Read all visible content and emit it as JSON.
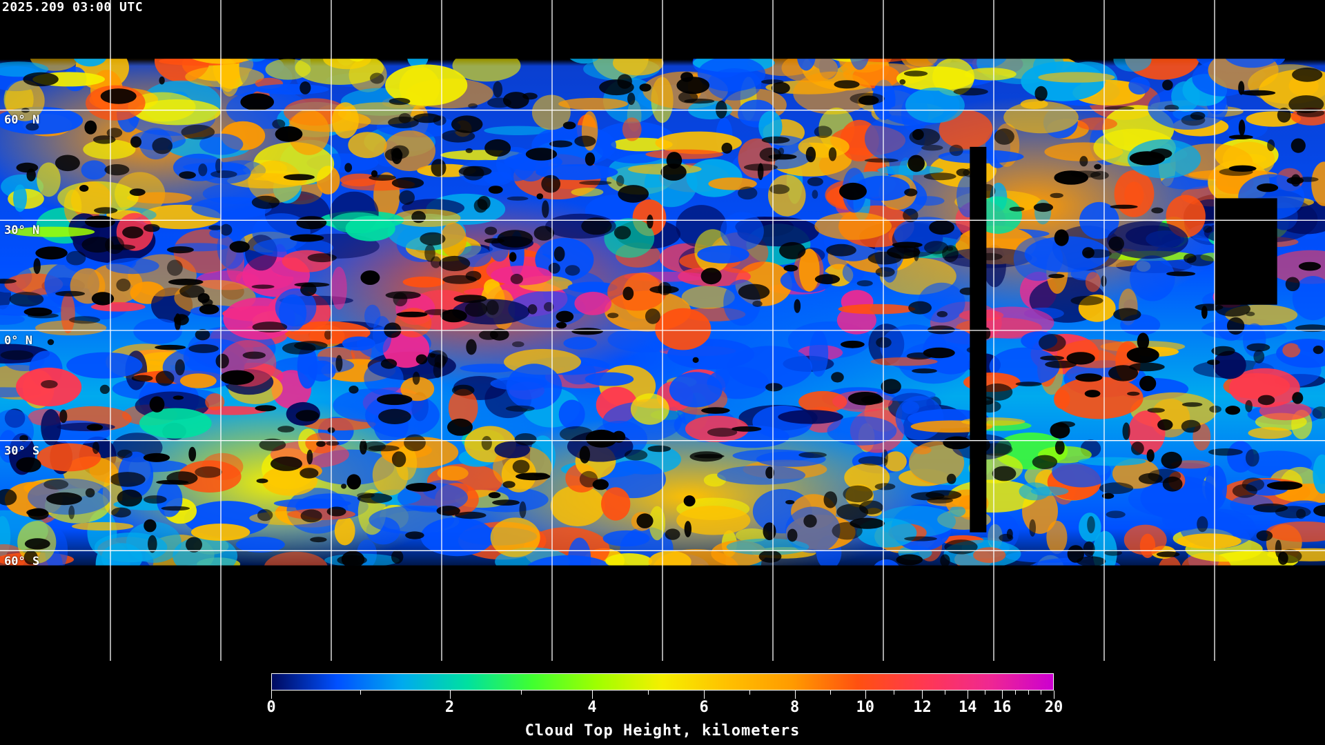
{
  "timestamp": "2025.209 03:00 UTC",
  "map": {
    "projection": "equirectangular",
    "grid_lon_step_deg": 30,
    "grid_lat_step_deg": 30,
    "lat_labels": [
      "60° N",
      "30° N",
      "0° N",
      "30° S",
      "60° S"
    ],
    "lat_values": [
      60,
      30,
      0,
      -30,
      -60
    ],
    "grid_color": "#ffffff",
    "coastline_color": "#ffffff",
    "no_data_color": "#000000"
  },
  "colorbar": {
    "title": "Cloud Top Height, kilometers",
    "min": 0,
    "max": 20,
    "units": "kilometers",
    "major_ticks": [
      "0",
      "2",
      "4",
      "6",
      "8",
      "10",
      "12",
      "14",
      "16",
      "20"
    ],
    "minor_ticks": [
      1,
      3,
      5,
      7,
      9,
      11,
      13,
      15,
      17,
      18,
      19
    ],
    "colors": [
      "#000a5e",
      "#0050ff",
      "#00aaee",
      "#00e0a0",
      "#40ff30",
      "#a0ff00",
      "#f5ef00",
      "#ffc000",
      "#ff9a00",
      "#ff5010",
      "#ff3850",
      "#f02890",
      "#cc00d0"
    ]
  }
}
